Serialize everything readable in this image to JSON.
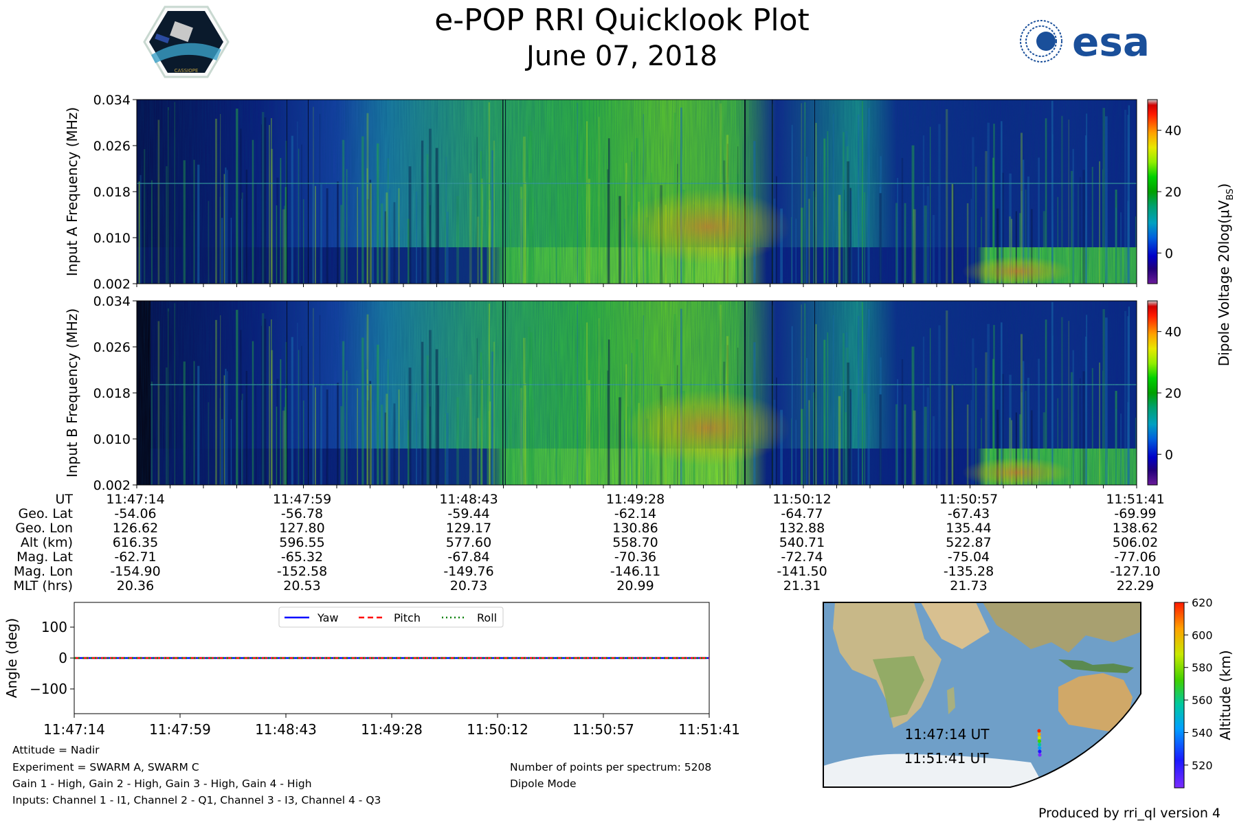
{
  "title": "e-POP RRI Quicklook Plot",
  "date": "June 07, 2018",
  "cassiope_logo_text": "CASSIOPE",
  "esa_logo_text": "esa",
  "spectrogram_a": {
    "ylabel": "Input A Frequency (MHz)",
    "yticks": [
      "0.002",
      "0.010",
      "0.018",
      "0.026",
      "0.034"
    ]
  },
  "spectrogram_b": {
    "ylabel": "Input B Frequency (MHz)",
    "yticks": [
      "0.002",
      "0.010",
      "0.018",
      "0.026",
      "0.034"
    ]
  },
  "colorbar_dipole": {
    "label": "Dipole Voltage 20log(μV",
    "label_sub": "B",
    "label_end": "S",
    "label_close": ")",
    "ticks": [
      "0",
      "20",
      "40"
    ]
  },
  "ephemeris": {
    "row_labels": [
      "UT",
      "Geo. Lat",
      "Geo. Lon",
      "Alt (km)",
      "Mag. Lat",
      "Mag. Lon",
      "MLT (hrs)"
    ],
    "columns": [
      [
        "11:47:14",
        "-54.06",
        "126.62",
        "616.35",
        "-62.71",
        "-154.90",
        "20.36"
      ],
      [
        "11:47:59",
        "-56.78",
        "127.80",
        "596.55",
        "-65.32",
        "-152.58",
        "20.53"
      ],
      [
        "11:48:43",
        "-59.44",
        "129.17",
        "577.60",
        "-67.84",
        "-149.76",
        "20.73"
      ],
      [
        "11:49:28",
        "-62.14",
        "130.86",
        "558.70",
        "-70.36",
        "-146.11",
        "20.99"
      ],
      [
        "11:50:12",
        "-64.77",
        "132.88",
        "540.71",
        "-72.74",
        "-141.50",
        "21.31"
      ],
      [
        "11:50:57",
        "-67.43",
        "135.44",
        "522.87",
        "-75.04",
        "-135.28",
        "21.73"
      ],
      [
        "11:51:41",
        "-69.99",
        "138.62",
        "506.02",
        "-77.06",
        "-127.10",
        "22.29"
      ]
    ]
  },
  "chart_data": [
    {
      "type": "heatmap",
      "name": "Input A",
      "ylabel": "Input A Frequency (MHz)",
      "ylim": [
        0.002,
        0.034
      ],
      "x_ticks": [
        "11:47:14",
        "11:47:59",
        "11:48:43",
        "11:49:28",
        "11:50:12",
        "11:50:57",
        "11:51:41"
      ],
      "color_range": [
        -10,
        50
      ],
      "colormap": "nipy_spectral"
    },
    {
      "type": "heatmap",
      "name": "Input B",
      "ylabel": "Input B Frequency (MHz)",
      "ylim": [
        0.002,
        0.034
      ],
      "x_ticks": [
        "11:47:14",
        "11:47:59",
        "11:48:43",
        "11:49:28",
        "11:50:12",
        "11:50:57",
        "11:51:41"
      ],
      "color_range": [
        -10,
        50
      ],
      "colormap": "nipy_spectral"
    },
    {
      "type": "line",
      "ylabel": "Angle (deg)",
      "ylim": [
        -180,
        180
      ],
      "yticks": [
        "−100",
        "0",
        "100"
      ],
      "x_ticks": [
        "11:47:14",
        "11:47:59",
        "11:48:43",
        "11:49:28",
        "11:50:12",
        "11:50:57",
        "11:51:41"
      ],
      "series": [
        {
          "name": "Yaw",
          "values": [
            0,
            0,
            0,
            0,
            0,
            0,
            0
          ],
          "color": "#0000ff",
          "style": "solid"
        },
        {
          "name": "Pitch",
          "values": [
            0,
            0,
            0,
            0,
            0,
            0,
            0
          ],
          "color": "#ff0000",
          "style": "dashed"
        },
        {
          "name": "Roll",
          "values": [
            0,
            0,
            0,
            0,
            0,
            0,
            0
          ],
          "color": "#008000",
          "style": "dotted"
        }
      ],
      "legend": "top-center"
    },
    {
      "type": "scatter",
      "name": "ground track",
      "start_label": "11:47:14 UT",
      "end_label": "11:51:41 UT",
      "colorbar_label": "Altitude (km)",
      "colorbar_ticks": [
        "520",
        "540",
        "560",
        "580",
        "600",
        "620"
      ],
      "color_range": [
        506,
        620
      ]
    }
  ],
  "attitude_plot": {
    "ylabel": "Angle (deg)",
    "yticks": [
      "100",
      "0",
      "−100"
    ],
    "legend": [
      "Yaw",
      "Pitch",
      "Roll"
    ]
  },
  "map": {
    "start_label": "11:47:14 UT",
    "end_label": "11:51:41 UT",
    "colorbar_label": "Altitude (km)",
    "colorbar_ticks": [
      "520",
      "540",
      "560",
      "580",
      "600",
      "620"
    ]
  },
  "footer_left": [
    "Attitude = Nadir",
    "Experiment = SWARM A, SWARM C",
    "Gain 1 - High, Gain 2 - High, Gain 3 - High, Gain 4 - High",
    "Inputs: Channel 1 - I1, Channel 2 - Q1, Channel 3 - I3, Channel 4 - Q3"
  ],
  "footer_right": [
    "Number of points per spectrum: 5208",
    "Dipole Mode"
  ],
  "produced_by": "Produced by rri_ql version 4",
  "colors": {
    "yaw": "#0000ff",
    "pitch": "#ff0000",
    "roll": "#008000",
    "ocean": "#6f9fc8",
    "land": "#b9ad84",
    "ice": "#eef2f5"
  }
}
